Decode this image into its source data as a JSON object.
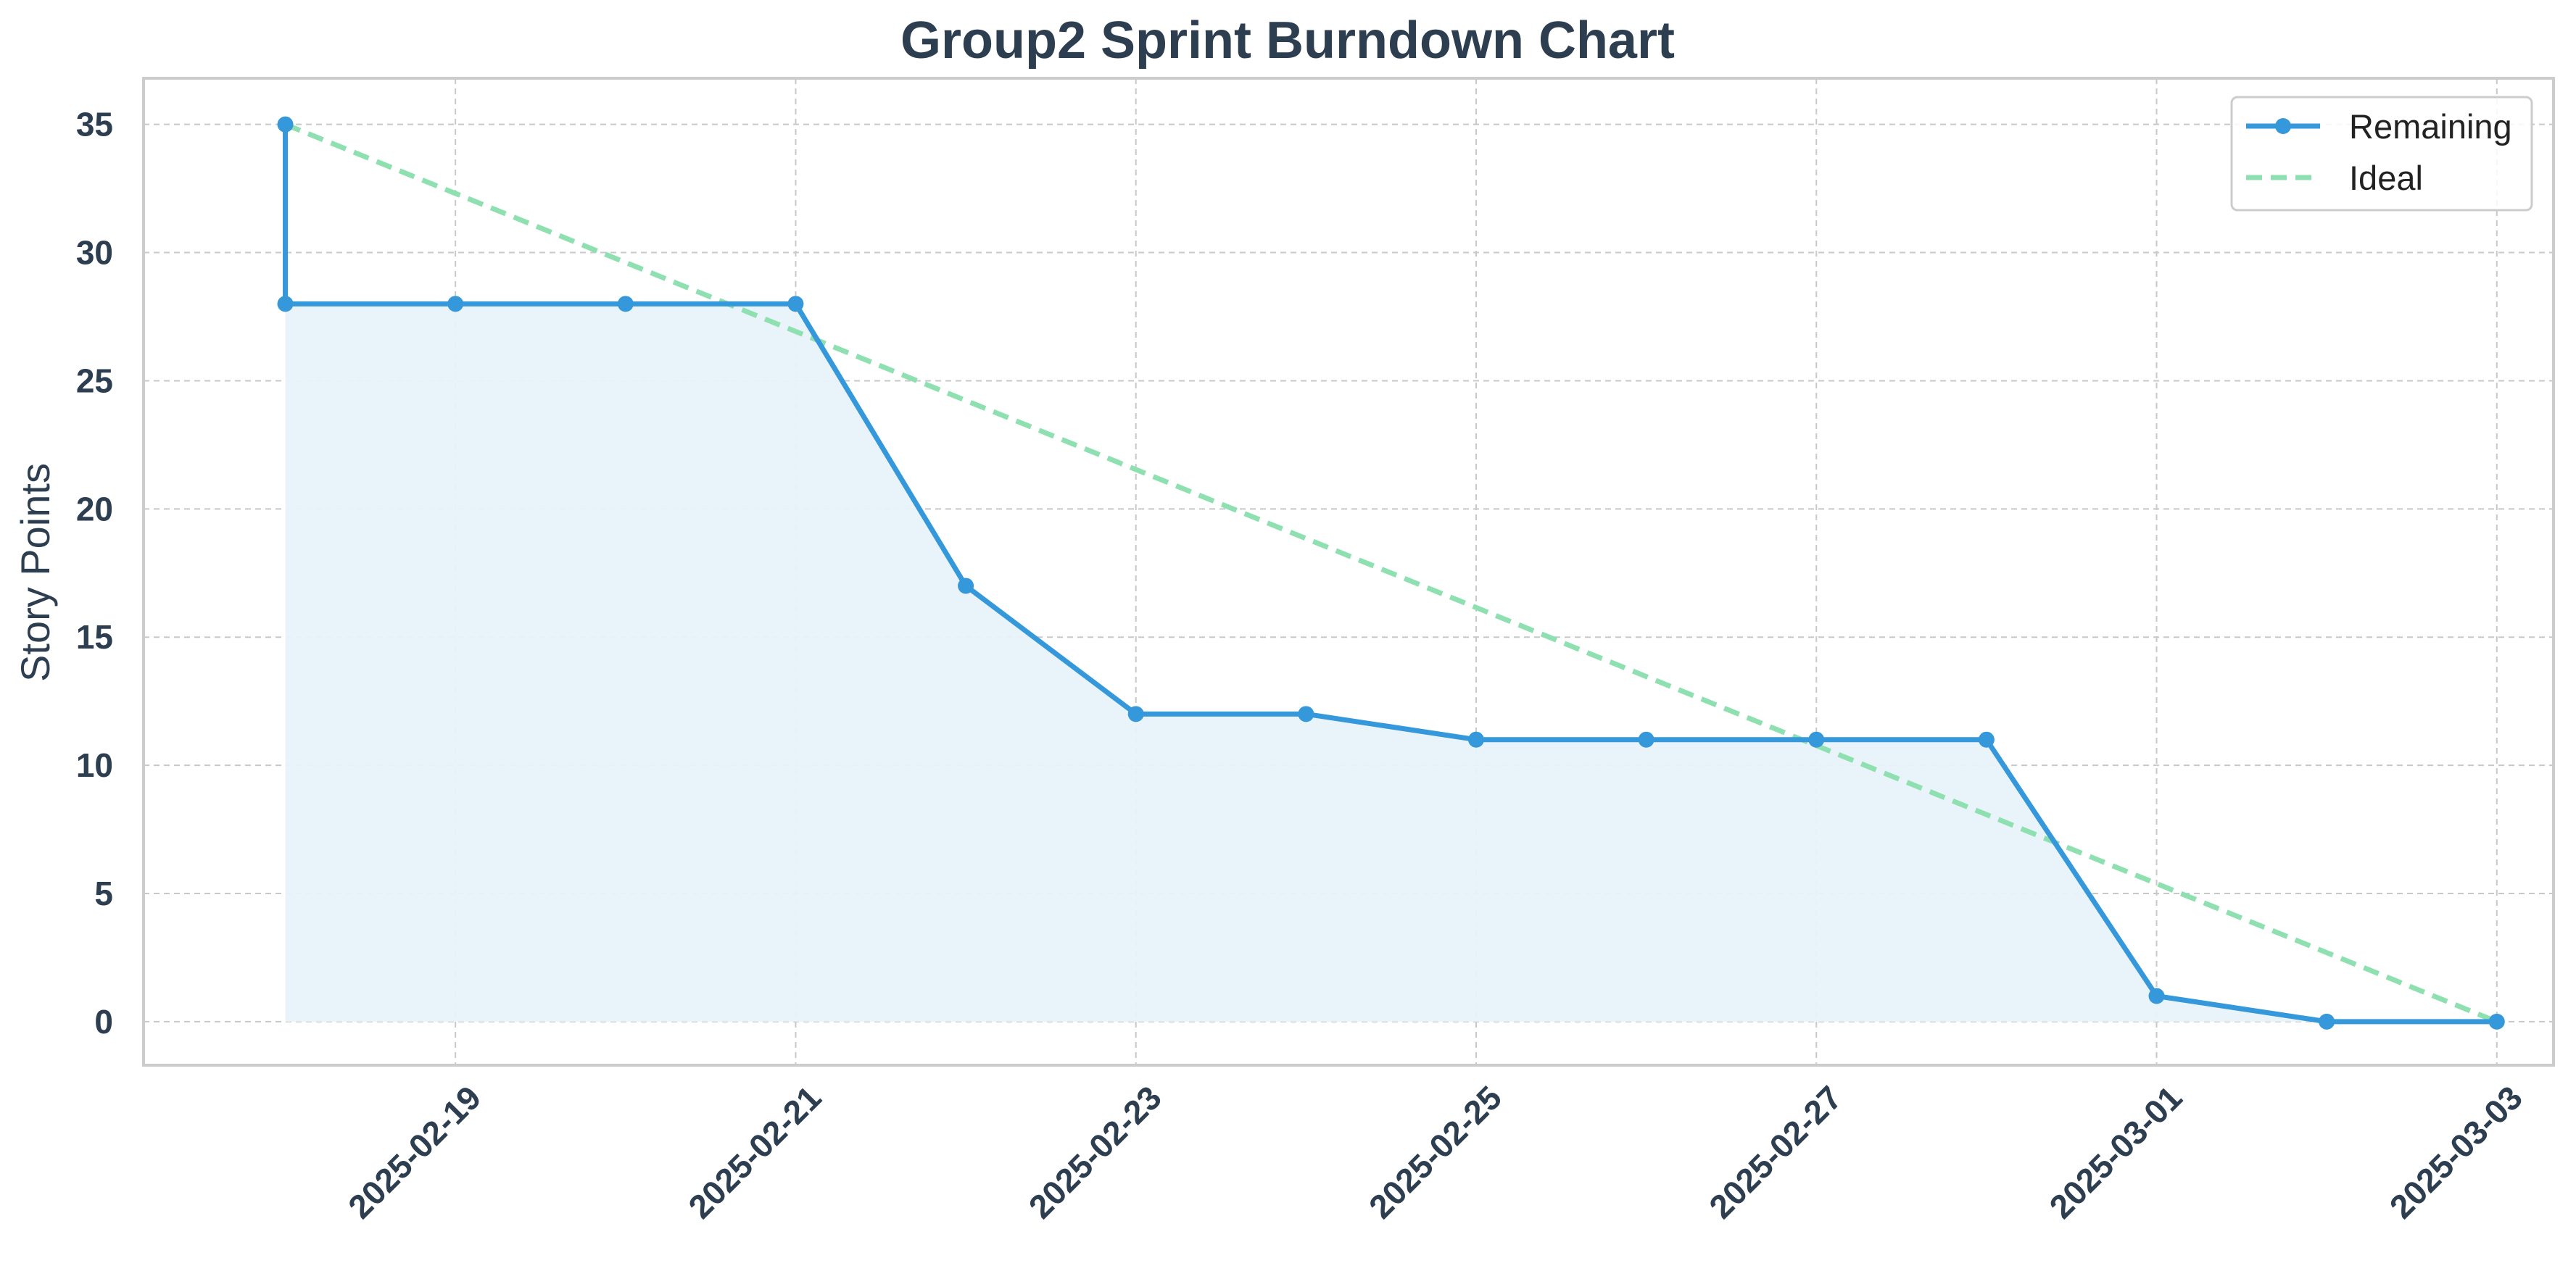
{
  "chart_data": {
    "type": "line",
    "title": "Group2 Sprint Burndown Chart",
    "xlabel": "",
    "ylabel": "Story Points",
    "ylim": [
      -1.7,
      36.8
    ],
    "xlim": [
      "2025-02-17T04:00",
      "2025-03-03T08:00"
    ],
    "yticks": [
      0,
      5,
      10,
      15,
      20,
      25,
      30,
      35
    ],
    "xticks": [
      "2025-02-19",
      "2025-02-21",
      "2025-02-23",
      "2025-02-25",
      "2025-02-27",
      "2025-03-01",
      "2025-03-03"
    ],
    "grid": true,
    "legend_position": "top-right",
    "series": [
      {
        "name": "Remaining",
        "style": "solid line with circle markers, area fill",
        "color": "#3498db",
        "points": [
          {
            "x": "2025-02-18",
            "y": 35
          },
          {
            "x": "2025-02-18",
            "y": 28
          },
          {
            "x": "2025-02-19",
            "y": 28
          },
          {
            "x": "2025-02-20",
            "y": 28
          },
          {
            "x": "2025-02-21",
            "y": 28
          },
          {
            "x": "2025-02-22",
            "y": 17
          },
          {
            "x": "2025-02-23",
            "y": 12
          },
          {
            "x": "2025-02-24",
            "y": 12
          },
          {
            "x": "2025-02-25",
            "y": 11
          },
          {
            "x": "2025-02-26",
            "y": 11
          },
          {
            "x": "2025-02-27",
            "y": 11
          },
          {
            "x": "2025-02-28",
            "y": 11
          },
          {
            "x": "2025-03-01",
            "y": 1
          },
          {
            "x": "2025-03-02",
            "y": 0
          },
          {
            "x": "2025-03-03",
            "y": 0
          }
        ]
      },
      {
        "name": "Ideal",
        "style": "dashed line",
        "color": "#8fe0b0",
        "points": [
          {
            "x": "2025-02-18",
            "y": 35
          },
          {
            "x": "2025-03-03",
            "y": 0
          }
        ]
      }
    ],
    "area_fill_color": "#e8f3fa"
  }
}
